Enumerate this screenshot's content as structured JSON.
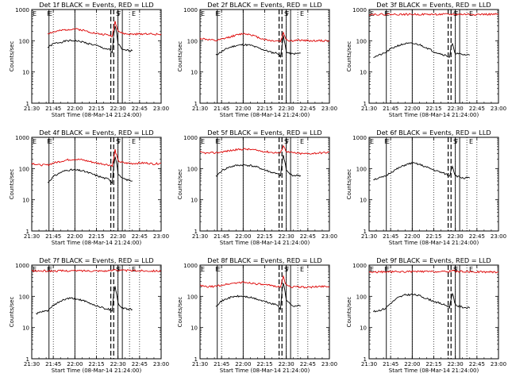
{
  "figure": {
    "x_ticks": [
      "21:30",
      "21:45",
      "22:00",
      "22:15",
      "22:30",
      "22:45",
      "23:00"
    ],
    "y_ticks": [
      "1",
      "10",
      "100",
      "1000"
    ],
    "xlabel": "Start Time (08-Mar-14 21:24:00)",
    "ylabel": "Counts/sec",
    "series_colors": {
      "events": "#000000",
      "lld": "#dd0000"
    }
  },
  "chart_data": [
    {
      "type": "line",
      "title": "Det 1f BLACK = Events, RED = LLD",
      "xlabel": "Start Time (08-Mar-14 21:24:00)",
      "ylabel": "Counts/sec",
      "yscale": "log",
      "xlim": [
        "21:30",
        "23:00"
      ],
      "ylim": [
        1,
        1000
      ],
      "markers": {
        "E1": "21:30",
        "F1": "21:40",
        "E2": "21:41",
        "S": "22:28",
        "F2": "22:29",
        "E3": "22:39"
      },
      "vlines_solid": [
        "21:42",
        "22:00",
        "22:30",
        "22:33"
      ],
      "vlines_dashed": [
        "22:25",
        "22:27"
      ],
      "vlines_dotted": [
        "22:38"
      ],
      "series": [
        {
          "x": [
            "21:41",
            "21:45",
            "21:50",
            "21:55",
            "22:00",
            "22:05",
            "22:10",
            "22:15",
            "22:20",
            "22:24",
            "22:26",
            "22:27",
            "22:28",
            "22:29",
            "22:30",
            "22:32",
            "22:33",
            "22:35",
            "22:40"
          ],
          "y": [
            60,
            80,
            90,
            100,
            100,
            92,
            80,
            70,
            58,
            52,
            40,
            150,
            300,
            180,
            80,
            60,
            50,
            50,
            48
          ]
        },
        {
          "x": [
            "21:41",
            "21:45",
            "21:50",
            "21:55",
            "22:00",
            "22:05",
            "22:10",
            "22:15",
            "22:20",
            "22:24",
            "22:26",
            "22:27",
            "22:28",
            "22:29",
            "22:30",
            "22:32",
            "22:35",
            "22:40",
            "22:45",
            "22:50",
            "22:55",
            "23:00"
          ],
          "y": [
            170,
            190,
            210,
            230,
            240,
            220,
            195,
            170,
            160,
            150,
            140,
            250,
            420,
            300,
            210,
            180,
            165,
            160,
            165,
            170,
            160,
            165
          ]
        }
      ]
    },
    {
      "type": "line",
      "title": "Det 2f BLACK = Events, RED = LLD",
      "xlabel": "Start Time (08-Mar-14 21:24:00)",
      "ylabel": "Counts/sec",
      "yscale": "log",
      "xlim": [
        "21:30",
        "23:00"
      ],
      "ylim": [
        1,
        1000
      ],
      "markers": {
        "E1": "21:30",
        "F1": "21:40",
        "E2": "21:41",
        "S": "22:28",
        "F2": "22:29",
        "E3": "22:39"
      },
      "vlines_solid": [
        "21:42",
        "22:00",
        "22:30",
        "22:33"
      ],
      "vlines_dashed": [
        "22:25",
        "22:27"
      ],
      "vlines_dotted": [
        "22:38"
      ],
      "series": [
        {
          "x": [
            "21:41",
            "21:45",
            "21:50",
            "21:55",
            "22:00",
            "22:05",
            "22:10",
            "22:15",
            "22:20",
            "22:24",
            "22:26",
            "22:27",
            "22:28",
            "22:29",
            "22:30",
            "22:32",
            "22:33",
            "22:35",
            "22:40"
          ],
          "y": [
            35,
            45,
            60,
            70,
            75,
            72,
            60,
            50,
            42,
            40,
            30,
            70,
            140,
            80,
            45,
            40,
            38,
            38,
            40
          ]
        },
        {
          "x": [
            "21:30",
            "21:35",
            "21:41",
            "21:45",
            "21:50",
            "21:55",
            "22:00",
            "22:05",
            "22:10",
            "22:15",
            "22:20",
            "22:24",
            "22:26",
            "22:27",
            "22:28",
            "22:29",
            "22:30",
            "22:32",
            "22:35",
            "22:40",
            "22:45",
            "22:50",
            "22:55",
            "23:00"
          ],
          "y": [
            120,
            110,
            100,
            110,
            130,
            150,
            170,
            160,
            130,
            110,
            100,
            100,
            95,
            130,
            180,
            140,
            110,
            100,
            100,
            105,
            100,
            100,
            100,
            100
          ]
        }
      ]
    },
    {
      "type": "line",
      "title": "Det 3f BLACK = Events, RED = LLD",
      "xlabel": "Start Time (08-Mar-14 21:24:00)",
      "ylabel": "Counts/sec",
      "yscale": "log",
      "xlim": [
        "21:30",
        "23:00"
      ],
      "ylim": [
        1,
        1000
      ],
      "markers": {
        "E1": "21:30",
        "F1": "21:40",
        "E2": "21:41",
        "S": "22:28",
        "F2": "22:29",
        "E3": "22:39"
      },
      "vlines_solid": [
        "21:42",
        "22:00",
        "22:30",
        "22:33"
      ],
      "vlines_dashed": [
        "22:25",
        "22:27"
      ],
      "vlines_dotted": [
        "22:38"
      ],
      "series": [
        {
          "x": [
            "21:33",
            "21:41",
            "21:45",
            "21:50",
            "21:55",
            "22:00",
            "22:05",
            "22:10",
            "22:15",
            "22:20",
            "22:24",
            "22:26",
            "22:27",
            "22:28",
            "22:29",
            "22:30",
            "22:32",
            "22:35",
            "22:40"
          ],
          "y": [
            30,
            40,
            55,
            70,
            80,
            82,
            75,
            60,
            45,
            38,
            33,
            30,
            60,
            80,
            50,
            40,
            38,
            36,
            35
          ]
        },
        {
          "x": [
            "21:30",
            "21:45",
            "22:00",
            "22:15",
            "22:30",
            "22:45",
            "23:00"
          ],
          "y": [
            700,
            700,
            700,
            700,
            700,
            700,
            700
          ]
        }
      ]
    },
    {
      "type": "line",
      "title": "Det 4f BLACK = Events, RED = LLD",
      "xlabel": "Start Time (08-Mar-14 21:24:00)",
      "ylabel": "Counts/sec",
      "yscale": "log",
      "xlim": [
        "21:30",
        "23:00"
      ],
      "ylim": [
        1,
        1000
      ],
      "markers": {
        "E1": "21:30",
        "F1": "21:40",
        "E2": "21:41",
        "S": "22:28",
        "F2": "22:29",
        "E3": "22:39"
      },
      "vlines_solid": [
        "21:42",
        "22:00",
        "22:30",
        "22:33"
      ],
      "vlines_dashed": [
        "22:25",
        "22:27"
      ],
      "vlines_dotted": [
        "22:38"
      ],
      "series": [
        {
          "x": [
            "21:41",
            "21:45",
            "21:50",
            "21:55",
            "22:00",
            "22:05",
            "22:10",
            "22:15",
            "22:20",
            "22:24",
            "22:26",
            "22:27",
            "22:28",
            "22:29",
            "22:30",
            "22:32",
            "22:35",
            "22:40"
          ],
          "y": [
            35,
            55,
            75,
            90,
            90,
            85,
            72,
            60,
            50,
            45,
            35,
            120,
            250,
            150,
            70,
            50,
            45,
            40
          ]
        },
        {
          "x": [
            "21:30",
            "21:35",
            "21:41",
            "21:45",
            "21:50",
            "21:55",
            "22:00",
            "22:05",
            "22:10",
            "22:15",
            "22:20",
            "22:24",
            "22:26",
            "22:27",
            "22:28",
            "22:29",
            "22:30",
            "22:32",
            "22:35",
            "22:40",
            "22:45",
            "22:50",
            "22:55",
            "23:00"
          ],
          "y": [
            150,
            130,
            130,
            150,
            170,
            190,
            200,
            190,
            170,
            150,
            140,
            130,
            125,
            200,
            400,
            260,
            180,
            160,
            150,
            145,
            150,
            150,
            140,
            150
          ]
        }
      ]
    },
    {
      "type": "line",
      "title": "Det 5f BLACK = Events, RED = LLD",
      "xlabel": "Start Time (08-Mar-14 21:24:00)",
      "ylabel": "Counts/sec",
      "yscale": "log",
      "xlim": [
        "21:30",
        "23:00"
      ],
      "ylim": [
        1,
        1000
      ],
      "markers": {
        "E1": "21:30",
        "F1": "21:40",
        "E2": "21:41",
        "S": "22:28",
        "F2": "22:29",
        "E3": "22:39"
      },
      "vlines_solid": [
        "21:42",
        "22:00",
        "22:30",
        "22:33"
      ],
      "vlines_dashed": [
        "22:25",
        "22:27"
      ],
      "vlines_dotted": [
        "22:38"
      ],
      "series": [
        {
          "x": [
            "21:41",
            "21:45",
            "21:50",
            "21:55",
            "22:00",
            "22:05",
            "22:10",
            "22:15",
            "22:20",
            "22:24",
            "22:26",
            "22:27",
            "22:28",
            "22:29",
            "22:30",
            "22:32",
            "22:33",
            "22:35",
            "22:40"
          ],
          "y": [
            55,
            85,
            110,
            125,
            130,
            125,
            110,
            90,
            75,
            70,
            55,
            150,
            260,
            160,
            90,
            70,
            65,
            60,
            60
          ]
        },
        {
          "x": [
            "21:30",
            "21:35",
            "21:41",
            "21:45",
            "21:50",
            "21:55",
            "22:00",
            "22:05",
            "22:10",
            "22:15",
            "22:20",
            "22:24",
            "22:26",
            "22:27",
            "22:28",
            "22:29",
            "22:30",
            "22:32",
            "22:35",
            "22:40",
            "22:45",
            "22:50",
            "22:55",
            "23:00"
          ],
          "y": [
            330,
            310,
            320,
            340,
            370,
            400,
            420,
            410,
            380,
            350,
            330,
            320,
            310,
            420,
            550,
            430,
            360,
            330,
            320,
            300,
            300,
            310,
            320,
            330
          ]
        }
      ]
    },
    {
      "type": "line",
      "title": "Det 6f BLACK = Events, RED = LLD",
      "xlabel": "Start Time (08-Mar-14 21:24:00)",
      "ylabel": "Counts/sec",
      "yscale": "log",
      "xlim": [
        "21:30",
        "23:00"
      ],
      "ylim": [
        1,
        1000
      ],
      "markers": {
        "E1": "21:30",
        "F1": "21:40",
        "E2": "21:41",
        "S": "22:28",
        "F2": "22:29",
        "E3": "22:39"
      },
      "vlines_solid": [
        "21:42",
        "22:00",
        "22:30",
        "22:33"
      ],
      "vlines_dashed": [
        "22:25",
        "22:27"
      ],
      "vlines_dotted": [
        "22:38"
      ],
      "series": [
        {
          "x": [
            "21:33",
            "21:41",
            "21:45",
            "21:50",
            "21:55",
            "22:00",
            "22:05",
            "22:10",
            "22:15",
            "22:20",
            "22:24",
            "22:26",
            "22:27",
            "22:28",
            "22:29",
            "22:30",
            "22:32",
            "22:35",
            "22:40"
          ],
          "y": [
            45,
            55,
            75,
            100,
            130,
            150,
            135,
            110,
            90,
            75,
            65,
            55,
            90,
            120,
            80,
            60,
            55,
            50,
            50
          ]
        }
      ]
    },
    {
      "type": "line",
      "title": "Det 7f BLACK = Events, RED = LLD",
      "xlabel": "Start Time (08-Mar-14 21:24:00)",
      "ylabel": "Counts/sec",
      "yscale": "log",
      "xlim": [
        "21:30",
        "23:00"
      ],
      "ylim": [
        1,
        1000
      ],
      "markers": {
        "E1": "21:30",
        "F1": "21:40",
        "E2": "21:41",
        "S": "22:28",
        "F2": "22:29",
        "E3": "22:39"
      },
      "vlines_solid": [
        "21:42",
        "22:00",
        "22:30",
        "22:33"
      ],
      "vlines_dashed": [
        "22:25",
        "22:27"
      ],
      "vlines_dotted": [
        "22:38"
      ],
      "series": [
        {
          "x": [
            "21:33",
            "21:41",
            "21:45",
            "21:50",
            "21:55",
            "22:00",
            "22:05",
            "22:10",
            "22:15",
            "22:20",
            "22:24",
            "22:26",
            "22:27",
            "22:28",
            "22:29",
            "22:30",
            "22:32",
            "22:35",
            "22:40"
          ],
          "y": [
            28,
            35,
            50,
            70,
            85,
            85,
            75,
            60,
            50,
            42,
            38,
            35,
            120,
            220,
            120,
            60,
            45,
            40,
            38
          ]
        },
        {
          "x": [
            "21:30",
            "21:45",
            "22:00",
            "22:15",
            "22:25",
            "22:28",
            "22:30",
            "22:45",
            "23:00"
          ],
          "y": [
            650,
            650,
            660,
            660,
            650,
            750,
            680,
            660,
            650
          ]
        }
      ]
    },
    {
      "type": "line",
      "title": "Det 8f BLACK = Events, RED = LLD",
      "xlabel": "Start Time (08-Mar-14 21:24:00)",
      "ylabel": "Counts/sec",
      "yscale": "log",
      "xlim": [
        "21:30",
        "23:00"
      ],
      "ylim": [
        1,
        1000
      ],
      "markers": {
        "E1": "21:30",
        "F1": "21:40",
        "E2": "21:41",
        "S": "22:28",
        "F2": "22:29",
        "E3": "22:39"
      },
      "vlines_solid": [
        "21:42",
        "22:00",
        "22:30",
        "22:33"
      ],
      "vlines_dashed": [
        "22:25",
        "22:27"
      ],
      "vlines_dotted": [
        "22:38"
      ],
      "series": [
        {
          "x": [
            "21:41",
            "21:45",
            "21:50",
            "21:55",
            "22:00",
            "22:05",
            "22:10",
            "22:15",
            "22:20",
            "22:24",
            "22:26",
            "22:27",
            "22:28",
            "22:29",
            "22:30",
            "22:32",
            "22:33",
            "22:35",
            "22:40"
          ],
          "y": [
            50,
            70,
            90,
            100,
            100,
            92,
            80,
            68,
            58,
            52,
            40,
            150,
            260,
            150,
            80,
            60,
            55,
            50,
            50
          ]
        },
        {
          "x": [
            "21:30",
            "21:35",
            "21:41",
            "21:45",
            "21:50",
            "21:55",
            "22:00",
            "22:05",
            "22:10",
            "22:15",
            "22:20",
            "22:24",
            "22:26",
            "22:27",
            "22:28",
            "22:29",
            "22:30",
            "22:32",
            "22:35",
            "22:40",
            "22:45",
            "22:50",
            "22:55",
            "23:00"
          ],
          "y": [
            220,
            200,
            210,
            230,
            250,
            270,
            280,
            270,
            250,
            230,
            220,
            210,
            200,
            300,
            420,
            300,
            230,
            210,
            200,
            200,
            195,
            200,
            210,
            210
          ]
        }
      ]
    },
    {
      "type": "line",
      "title": "Det 9f BLACK = Events, RED = LLD",
      "xlabel": "Start Time (08-Mar-14 21:24:00)",
      "ylabel": "Counts/sec",
      "yscale": "log",
      "xlim": [
        "21:30",
        "23:00"
      ],
      "ylim": [
        1,
        1000
      ],
      "markers": {
        "E1": "21:30",
        "F1": "21:40",
        "E2": "21:41",
        "S": "22:28",
        "F2": "22:29",
        "E3": "22:39"
      },
      "vlines_solid": [
        "21:42",
        "22:00",
        "22:30",
        "22:33"
      ],
      "vlines_dashed": [
        "22:25",
        "22:27"
      ],
      "vlines_dotted": [
        "22:38"
      ],
      "series": [
        {
          "x": [
            "21:33",
            "21:41",
            "21:45",
            "21:50",
            "21:55",
            "22:00",
            "22:05",
            "22:10",
            "22:15",
            "22:20",
            "22:24",
            "22:26",
            "22:27",
            "22:28",
            "22:29",
            "22:30",
            "22:32",
            "22:35",
            "22:40"
          ],
          "y": [
            32,
            40,
            60,
            90,
            110,
            115,
            105,
            85,
            70,
            58,
            50,
            45,
            80,
            130,
            80,
            55,
            48,
            45,
            42
          ]
        },
        {
          "x": [
            "21:30",
            "21:45",
            "22:00",
            "22:15",
            "22:25",
            "22:28",
            "22:30",
            "22:45",
            "23:00"
          ],
          "y": [
            600,
            610,
            620,
            620,
            610,
            700,
            630,
            610,
            600
          ]
        }
      ]
    }
  ]
}
